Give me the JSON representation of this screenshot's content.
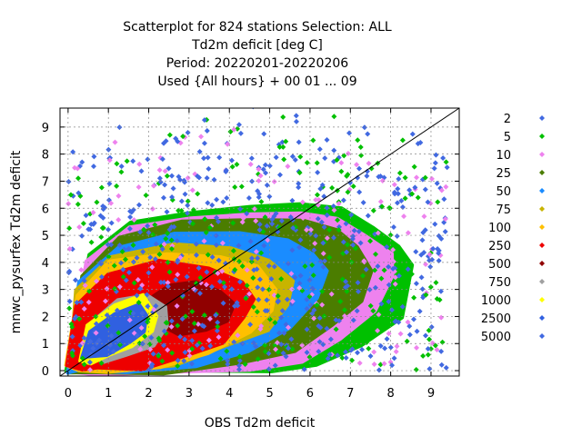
{
  "chart_data": {
    "type": "scatter",
    "title_lines": [
      "Scatterplot for  824 stations Selection: ALL",
      "Td2m deficit [deg C]",
      "Period: 20220201-20220206",
      "Used {All hours} + 00 01 ... 09"
    ],
    "xlabel": "OBS Td2m deficit",
    "ylabel": "mnwc_pysurfex Td2m deficit",
    "xlim": [
      -0.2,
      9.7
    ],
    "ylim": [
      -0.2,
      9.7
    ],
    "xticks": [
      "0",
      "1",
      "2",
      "3",
      "4",
      "5",
      "6",
      "7",
      "8",
      "9"
    ],
    "yticks": [
      "0",
      "1",
      "2",
      "3",
      "4",
      "5",
      "6",
      "7",
      "8",
      "9"
    ],
    "grid": true,
    "diagonal": true,
    "legend_placement": "right",
    "legend": [
      {
        "label": "2",
        "color": "#4169e1"
      },
      {
        "label": "5",
        "color": "#00c000"
      },
      {
        "label": "10",
        "color": "#ee82ee"
      },
      {
        "label": "25",
        "color": "#4b7d00"
      },
      {
        "label": "50",
        "color": "#1a8cff"
      },
      {
        "label": "75",
        "color": "#c8b400"
      },
      {
        "label": "100",
        "color": "#ffc000"
      },
      {
        "label": "250",
        "color": "#ee0000"
      },
      {
        "label": "500",
        "color": "#900000"
      },
      {
        "label": "750",
        "color": "#a0a0a0"
      },
      {
        "label": "1000",
        "color": "#ffff00"
      },
      {
        "label": "2500",
        "color": "#3060e0"
      },
      {
        "label": "5000",
        "color": "#4169e1"
      }
    ],
    "density_regions": [
      {
        "level": "5",
        "color": "#00c000",
        "points": [
          [
            0,
            0
          ],
          [
            0.5,
            4.3
          ],
          [
            1.5,
            5.5
          ],
          [
            3,
            5.9
          ],
          [
            4.5,
            6.1
          ],
          [
            5.8,
            6.2
          ],
          [
            6.8,
            6.0
          ],
          [
            7.6,
            5.4
          ],
          [
            8.2,
            4.6
          ],
          [
            8.6,
            4.0
          ],
          [
            8.3,
            2.0
          ],
          [
            7.3,
            1.0
          ],
          [
            6.2,
            0.2
          ],
          [
            5,
            -0.1
          ],
          [
            3,
            -0.1
          ],
          [
            1,
            -0.1
          ]
        ]
      },
      {
        "level": "10",
        "color": "#ee82ee",
        "points": [
          [
            0,
            0
          ],
          [
            0.4,
            4.0
          ],
          [
            1.5,
            5.3
          ],
          [
            3,
            5.7
          ],
          [
            4.5,
            5.8
          ],
          [
            5.8,
            5.8
          ],
          [
            6.7,
            5.6
          ],
          [
            7.4,
            5.0
          ],
          [
            8.0,
            4.3
          ],
          [
            8.1,
            3.5
          ],
          [
            7.6,
            2.1
          ],
          [
            6.8,
            1.2
          ],
          [
            5.8,
            0.4
          ],
          [
            4.5,
            0.0
          ],
          [
            2.5,
            -0.1
          ],
          [
            0.8,
            -0.1
          ]
        ]
      },
      {
        "level": "25",
        "color": "#4b7d00",
        "points": [
          [
            0,
            0
          ],
          [
            0.3,
            3.6
          ],
          [
            1.3,
            5.0
          ],
          [
            2.8,
            5.5
          ],
          [
            4.5,
            5.6
          ],
          [
            5.8,
            5.5
          ],
          [
            6.6,
            5.2
          ],
          [
            7.2,
            4.6
          ],
          [
            7.5,
            3.7
          ],
          [
            7.3,
            2.6
          ],
          [
            6.6,
            1.6
          ],
          [
            5.6,
            0.8
          ],
          [
            4.2,
            0.2
          ],
          [
            2.3,
            -0.1
          ],
          [
            0.6,
            -0.1
          ]
        ]
      },
      {
        "level": "50",
        "color": "#1a8cff",
        "points": [
          [
            0,
            0
          ],
          [
            0.2,
            3.2
          ],
          [
            1.2,
            4.6
          ],
          [
            2.7,
            5.1
          ],
          [
            4.3,
            5.1
          ],
          [
            5.4,
            4.9
          ],
          [
            6.1,
            4.4
          ],
          [
            6.4,
            3.6
          ],
          [
            6.2,
            2.6
          ],
          [
            5.5,
            1.6
          ],
          [
            4.5,
            0.8
          ],
          [
            3.2,
            0.2
          ],
          [
            1.5,
            -0.1
          ],
          [
            0.3,
            -0.1
          ]
        ]
      },
      {
        "level": "75",
        "color": "#c8b400",
        "points": [
          [
            0,
            0.1
          ],
          [
            0.2,
            2.9
          ],
          [
            1.1,
            4.2
          ],
          [
            2.6,
            4.6
          ],
          [
            4.0,
            4.5
          ],
          [
            5.0,
            4.1
          ],
          [
            5.6,
            3.4
          ],
          [
            5.5,
            2.4
          ],
          [
            4.9,
            1.5
          ],
          [
            3.9,
            0.8
          ],
          [
            2.6,
            0.2
          ],
          [
            1.2,
            0.0
          ],
          [
            0.3,
            0.0
          ]
        ]
      },
      {
        "level": "100",
        "color": "#ffc000",
        "points": [
          [
            0,
            0.1
          ],
          [
            0.2,
            2.7
          ],
          [
            1.0,
            4.0
          ],
          [
            2.5,
            4.3
          ],
          [
            3.8,
            4.2
          ],
          [
            4.7,
            3.8
          ],
          [
            5.2,
            3.1
          ],
          [
            5.1,
            2.2
          ],
          [
            4.5,
            1.4
          ],
          [
            3.5,
            0.7
          ],
          [
            2.3,
            0.2
          ],
          [
            1.0,
            0.0
          ],
          [
            0.3,
            0.0
          ]
        ]
      },
      {
        "level": "250",
        "color": "#ee0000",
        "points": [
          [
            0,
            0.2
          ],
          [
            0.2,
            2.5
          ],
          [
            1.0,
            3.6
          ],
          [
            2.3,
            4.0
          ],
          [
            3.5,
            3.8
          ],
          [
            4.3,
            3.3
          ],
          [
            4.6,
            2.7
          ],
          [
            4.4,
            1.9
          ],
          [
            3.8,
            1.1
          ],
          [
            2.9,
            0.5
          ],
          [
            1.8,
            0.1
          ],
          [
            0.8,
            0.0
          ],
          [
            0.3,
            0.1
          ]
        ]
      },
      {
        "level": "500",
        "color": "#900000",
        "points": [
          [
            2.0,
            2.6
          ],
          [
            2.5,
            3.1
          ],
          [
            3.2,
            3.2
          ],
          [
            3.8,
            2.9
          ],
          [
            4.1,
            2.4
          ],
          [
            3.9,
            1.8
          ],
          [
            3.4,
            1.4
          ],
          [
            2.8,
            1.3
          ],
          [
            2.3,
            1.6
          ]
        ]
      },
      {
        "level": "750",
        "color": "#a0a0a0",
        "points": [
          [
            0.4,
            0.5
          ],
          [
            0.6,
            1.8
          ],
          [
            1.2,
            2.6
          ],
          [
            1.9,
            2.9
          ],
          [
            2.4,
            2.4
          ],
          [
            2.5,
            1.6
          ],
          [
            2.1,
            1.0
          ],
          [
            1.5,
            0.6
          ],
          [
            0.9,
            0.4
          ]
        ]
      },
      {
        "level": "1000",
        "color": "#ffff00",
        "points": [
          [
            0.3,
            0.3
          ],
          [
            0.5,
            1.7
          ],
          [
            1.1,
            2.5
          ],
          [
            1.8,
            2.8
          ],
          [
            2.2,
            2.1
          ],
          [
            2.1,
            1.4
          ],
          [
            1.6,
            0.9
          ],
          [
            1.0,
            0.5
          ],
          [
            0.6,
            0.3
          ]
        ]
      },
      {
        "level": "2500",
        "color": "#3060e0",
        "points": [
          [
            0.35,
            0.4
          ],
          [
            0.6,
            1.5
          ],
          [
            1.1,
            2.2
          ],
          [
            1.7,
            2.5
          ],
          [
            2.0,
            2.0
          ],
          [
            1.9,
            1.4
          ],
          [
            1.5,
            1.0
          ],
          [
            1.0,
            0.6
          ]
        ]
      }
    ]
  }
}
